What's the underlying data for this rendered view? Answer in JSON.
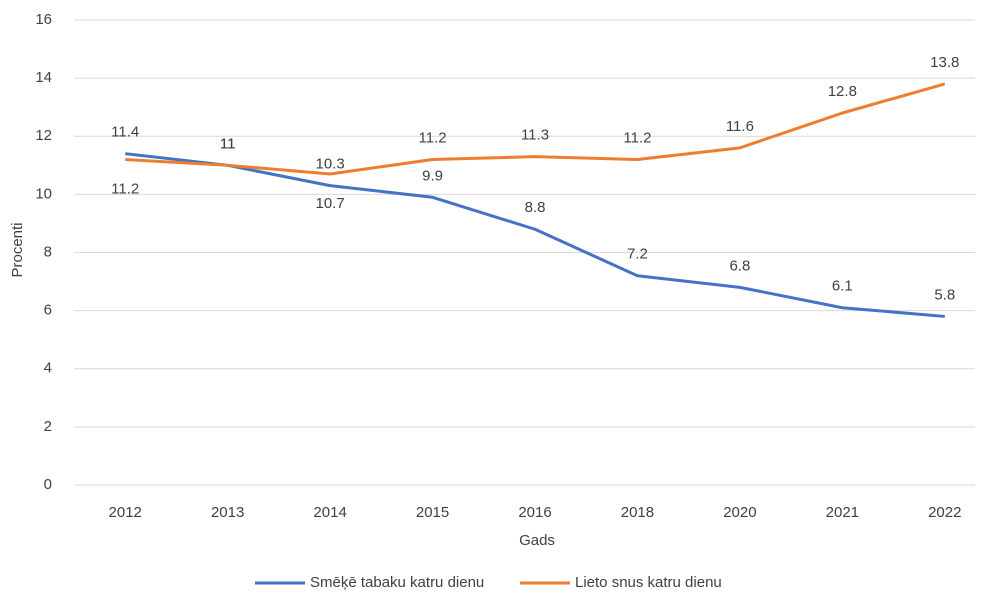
{
  "chart_data": {
    "type": "line",
    "categories": [
      "2012",
      "2013",
      "2014",
      "2015",
      "2016",
      "2018",
      "2020",
      "2021",
      "2022"
    ],
    "series": [
      {
        "name": "Smēķē tabaku katru dienu",
        "color": "#4472c4",
        "values": [
          11.4,
          11,
          10.3,
          9.9,
          8.8,
          7.2,
          6.8,
          6.1,
          5.8
        ]
      },
      {
        "name": "Lieto snus katru dienu",
        "color": "#ed7d31",
        "values": [
          11.2,
          11,
          10.7,
          11.2,
          11.3,
          11.2,
          11.6,
          12.8,
          13.8
        ]
      }
    ],
    "ylabel": "Procenti",
    "xlabel": "Gads",
    "ylim": [
      0,
      16
    ],
    "yticks": [
      0,
      2,
      4,
      6,
      8,
      10,
      12,
      14,
      16
    ],
    "grid": true,
    "legend": "bottom"
  }
}
